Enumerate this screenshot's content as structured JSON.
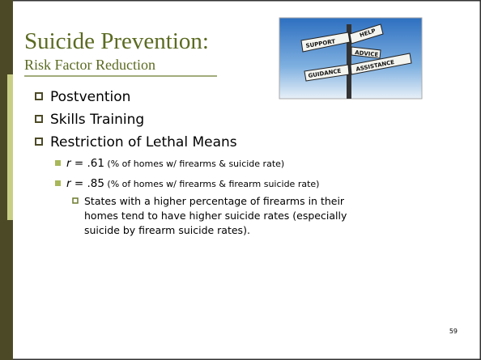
{
  "slide": {
    "title": "Suicide Prevention:",
    "subtitle": "Risk Factor Reduction",
    "image": {
      "signs": [
        "SUPPORT",
        "HELP",
        "ADVICE",
        "GUIDANCE",
        "ASSISTANCE"
      ]
    },
    "bullets": [
      "Postvention",
      "Skills Training",
      "Restriction of Lethal Means"
    ],
    "sub_bullets": [
      {
        "var": "r",
        "eq": " = .61",
        "note": " (% of homes w/ firearms & suicide rate)"
      },
      {
        "var": "r",
        "eq": " = .85",
        "note": " (% of homes w/ firearms & firearm suicide rate)"
      }
    ],
    "detail_lines": [
      "States with a higher percentage of firearms in their",
      "homes tend to have higher suicide rates (especially",
      "suicide by firearm suicide rates)."
    ],
    "page_number": "59"
  }
}
